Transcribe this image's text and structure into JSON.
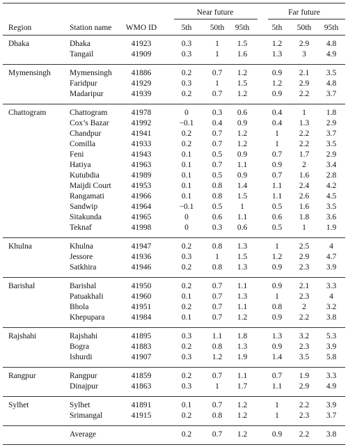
{
  "table": {
    "group_headers": [
      "Near future",
      "Far future"
    ],
    "columns": [
      "Region",
      "Station name",
      "WMO ID",
      "5th",
      "50th",
      "95th",
      "5th",
      "50th",
      "95th"
    ],
    "groups": [
      {
        "region": "Dhaka",
        "rows": [
          [
            "Dhaka",
            "41923",
            "0.3",
            "1",
            "1.5",
            "1.2",
            "2.9",
            "4.8"
          ],
          [
            "Tangail",
            "41909",
            "0.3",
            "1",
            "1.6",
            "1.3",
            "3",
            "4.9"
          ]
        ]
      },
      {
        "region": "Mymensingh",
        "rows": [
          [
            "Mymensingh",
            "41886",
            "0.2",
            "0.7",
            "1.2",
            "0.9",
            "2.1",
            "3.5"
          ],
          [
            "Faridpur",
            "41929",
            "0.3",
            "1",
            "1.5",
            "1.2",
            "2.9",
            "4.8"
          ],
          [
            "Madaripur",
            "41939",
            "0.2",
            "0.7",
            "1.2",
            "0.9",
            "2.2",
            "3.7"
          ]
        ]
      },
      {
        "region": "Chattogram",
        "rows": [
          [
            "Chattogram",
            "41978",
            "0",
            "0.3",
            "0.6",
            "0.4",
            "1",
            "1.8"
          ],
          [
            "Cox’s Bazar",
            "41992",
            "−0.1",
            "0.4",
            "0.9",
            "0.4",
            "1.3",
            "2.9"
          ],
          [
            "Chandpur",
            "41941",
            "0.2",
            "0.7",
            "1.2",
            "1",
            "2.2",
            "3.7"
          ],
          [
            "Comilla",
            "41933",
            "0.2",
            "0.7",
            "1.2",
            "1",
            "2.2",
            "3.5"
          ],
          [
            "Feni",
            "41943",
            "0.1",
            "0.5",
            "0.9",
            "0.7",
            "1.7",
            "2.9"
          ],
          [
            "Hatiya",
            "41963",
            "0.1",
            "0.7",
            "1.1",
            "0.9",
            "2",
            "3.4"
          ],
          [
            "Kutubdia",
            "41989",
            "0.1",
            "0.5",
            "0.9",
            "0.7",
            "1.6",
            "2.8"
          ],
          [
            "Maijdi Court",
            "41953",
            "0.1",
            "0.8",
            "1.4",
            "1.1",
            "2.4",
            "4.2"
          ],
          [
            "Rangamati",
            "41966",
            "0.1",
            "0.8",
            "1.5",
            "1.1",
            "2.6",
            "4.5"
          ],
          [
            "Sandwip",
            "41964",
            "−0.1",
            "0.5",
            "1",
            "0.5",
            "1.6",
            "3.5"
          ],
          [
            "Sitakunda",
            "41965",
            "0",
            "0.6",
            "1.1",
            "0.6",
            "1.8",
            "3.6"
          ],
          [
            "Teknaf",
            "41998",
            "0",
            "0.3",
            "0.6",
            "0.5",
            "1",
            "1.9"
          ]
        ]
      },
      {
        "region": "Khulna",
        "rows": [
          [
            "Khulna",
            "41947",
            "0.2",
            "0.8",
            "1.3",
            "1",
            "2.5",
            "4"
          ],
          [
            "Jessore",
            "41936",
            "0.3",
            "1",
            "1.5",
            "1.2",
            "2.9",
            "4.7"
          ],
          [
            "Satkhira",
            "41946",
            "0.2",
            "0.8",
            "1.3",
            "0.9",
            "2.3",
            "3.9"
          ]
        ]
      },
      {
        "region": "Barishal",
        "rows": [
          [
            "Barishal",
            "41950",
            "0.2",
            "0.7",
            "1.1",
            "0.9",
            "2.1",
            "3.3"
          ],
          [
            "Patuakhali",
            "41960",
            "0.1",
            "0.7",
            "1.3",
            "1",
            "2.3",
            "4"
          ],
          [
            "Bhola",
            "41951",
            "0.2",
            "0.7",
            "1.1",
            "0.8",
            "2",
            "3.2"
          ],
          [
            "Khepupara",
            "41984",
            "0.1",
            "0.7",
            "1.2",
            "0.9",
            "2.2",
            "3.8"
          ]
        ]
      },
      {
        "region": "Rajshahi",
        "rows": [
          [
            "Rajshahi",
            "41895",
            "0.3",
            "1.1",
            "1.8",
            "1.3",
            "3.2",
            "5.3"
          ],
          [
            "Bogra",
            "41883",
            "0.2",
            "0.8",
            "1.3",
            "0.9",
            "2.3",
            "3.9"
          ],
          [
            "Ishurdi",
            "41907",
            "0.3",
            "1.2",
            "1.9",
            "1.4",
            "3.5",
            "5.8"
          ]
        ]
      },
      {
        "region": "Rangpur",
        "rows": [
          [
            "Rangpur",
            "41859",
            "0.2",
            "0.7",
            "1.1",
            "0.7",
            "1.9",
            "3.3"
          ],
          [
            "Dinajpur",
            "41863",
            "0.3",
            "1",
            "1.7",
            "1.1",
            "2.9",
            "4.9"
          ]
        ]
      },
      {
        "region": "Sylhet",
        "rows": [
          [
            "Sylhet",
            "41891",
            "0.1",
            "0.7",
            "1.2",
            "1",
            "2.2",
            "3.9"
          ],
          [
            "Srimangal",
            "41915",
            "0.2",
            "0.8",
            "1.2",
            "1",
            "2.3",
            "3.7"
          ]
        ]
      }
    ],
    "average": {
      "label": "Average",
      "values": [
        "0.2",
        "0.7",
        "1.2",
        "0.9",
        "2.2",
        "3.8"
      ]
    }
  }
}
